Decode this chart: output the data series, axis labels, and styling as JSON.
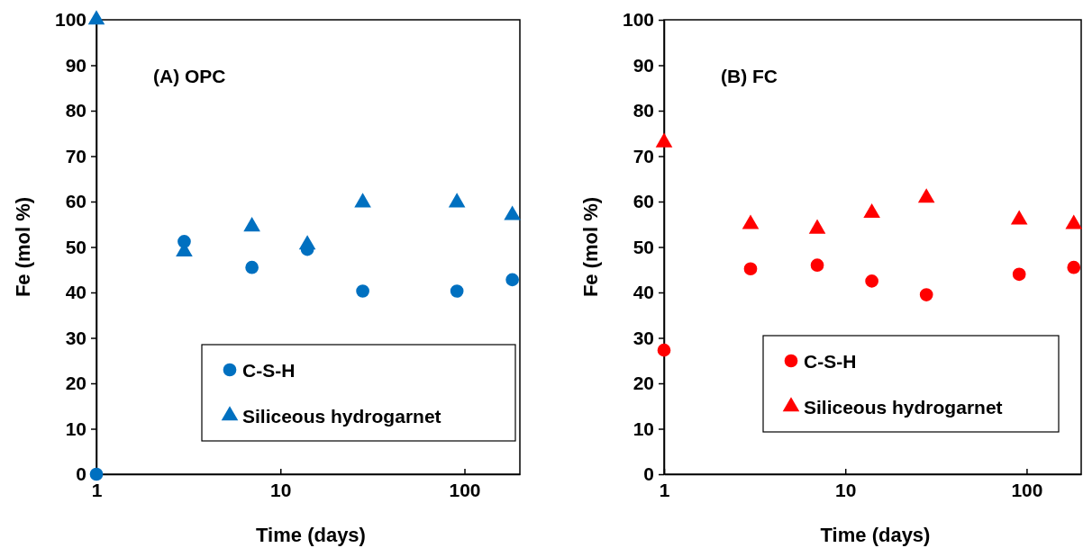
{
  "chart_data": [
    {
      "type": "scatter",
      "title": "(A) OPC",
      "xlabel": "Time (days)",
      "ylabel": "Fe (mol %)",
      "log": "x",
      "xlim": [
        1,
        200
      ],
      "xticks": [
        1,
        10,
        100
      ],
      "ylim": [
        0,
        100
      ],
      "yticks": [
        0,
        10,
        20,
        30,
        40,
        50,
        60,
        70,
        80,
        90,
        100
      ],
      "grid": false,
      "legend": "bottom right",
      "x": [
        1,
        3,
        7,
        14,
        28,
        91,
        182
      ],
      "series": [
        {
          "name": "C-S-H",
          "color": "#0070c0",
          "marker": "circle",
          "values": [
            0,
            51.2,
            45.5,
            49.5,
            40.3,
            40.3,
            42.8
          ]
        },
        {
          "name": "Siliceous hydrogarnet",
          "color": "#0070c0",
          "marker": "triangle",
          "values": [
            100,
            49,
            54.5,
            50.5,
            59.8,
            59.8,
            57
          ]
        }
      ]
    },
    {
      "type": "scatter",
      "title": "(B) FC",
      "xlabel": "Time (days)",
      "ylabel": "Fe (mol %)",
      "log": "x",
      "xlim": [
        1,
        200
      ],
      "xticks": [
        1,
        10,
        100
      ],
      "ylim": [
        0,
        100
      ],
      "yticks": [
        0,
        10,
        20,
        30,
        40,
        50,
        60,
        70,
        80,
        90,
        100
      ],
      "grid": false,
      "legend": "bottom right",
      "x": [
        1,
        3,
        7,
        14,
        28,
        91,
        182
      ],
      "series": [
        {
          "name": "C-S-H",
          "color": "#ff0000",
          "marker": "circle",
          "values": [
            27.3,
            45.2,
            46,
            42.5,
            39.5,
            44,
            45.5
          ]
        },
        {
          "name": "Siliceous hydrogarnet",
          "color": "#ff0000",
          "marker": "triangle",
          "values": [
            73,
            55,
            54,
            57.5,
            60.8,
            56,
            55
          ]
        }
      ]
    }
  ]
}
